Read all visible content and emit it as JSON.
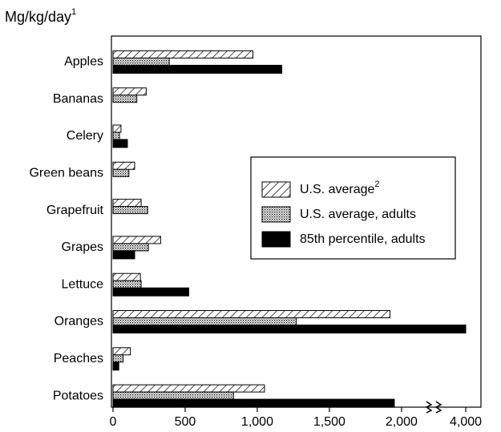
{
  "chart_data": {
    "type": "hbar",
    "title": "Mg/kg/day",
    "title_note": "1",
    "categories": [
      "Apples",
      "Bananas",
      "Celery",
      "Green beans",
      "Grapefruit",
      "Grapes",
      "Lettuce",
      "Oranges",
      "Peaches",
      "Potatoes"
    ],
    "series": [
      {
        "name": "U.S. average",
        "name_note": "2",
        "color": "#000000",
        "pattern": "hatch",
        "values": [
          970,
          230,
          55,
          150,
          195,
          330,
          190,
          1920,
          120,
          1050
        ]
      },
      {
        "name": "U.S. average, adults",
        "color": "#000000",
        "pattern": "dots",
        "values": [
          390,
          165,
          45,
          110,
          240,
          245,
          195,
          1270,
          70,
          835
        ]
      },
      {
        "name": "85th percentile, adults",
        "color": "#000000",
        "pattern": "solid",
        "values": [
          1170,
          null,
          100,
          null,
          null,
          150,
          525,
          4000,
          40,
          1950
        ]
      }
    ],
    "xlim": [
      0,
      4000
    ],
    "xticks": [
      0,
      500,
      {
        "value": 1000,
        "label": "1,000"
      },
      {
        "value": 1500,
        "label": "1,500"
      },
      {
        "value": 2000,
        "label": "2,000"
      },
      {
        "value": 4000,
        "label": "4,000"
      }
    ],
    "axis_break": true,
    "legend": "right"
  }
}
